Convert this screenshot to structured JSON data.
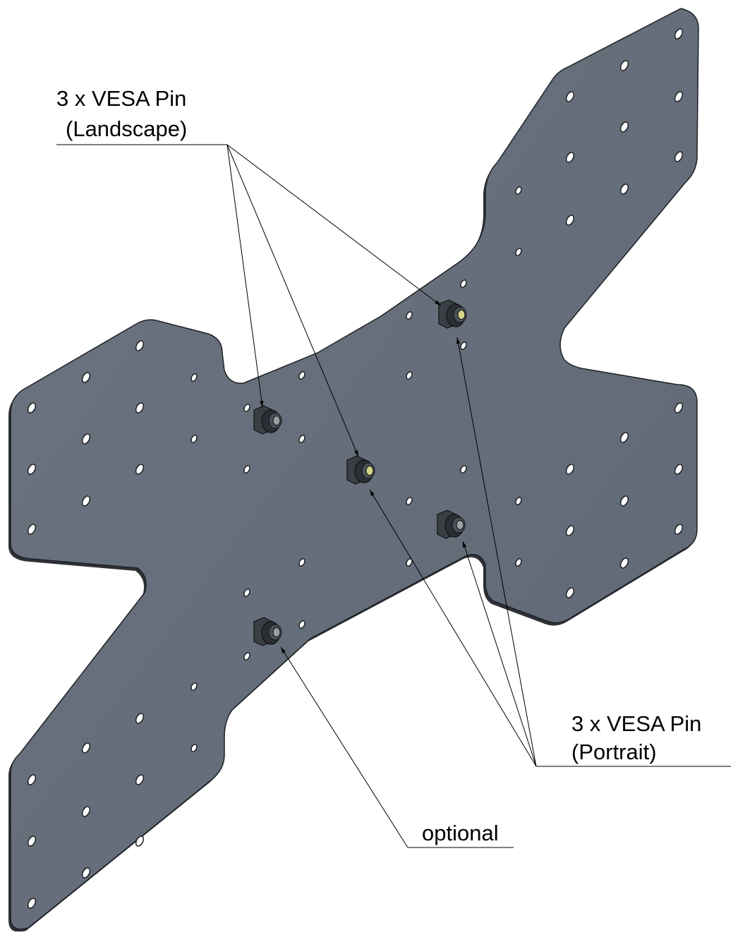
{
  "labels": {
    "landscape": {
      "line1": "3 x VESA Pin",
      "line2": "(Landscape)"
    },
    "portrait": {
      "line1": "3 x VESA Pin",
      "line2": "(Portrait)"
    },
    "optional": "optional"
  }
}
